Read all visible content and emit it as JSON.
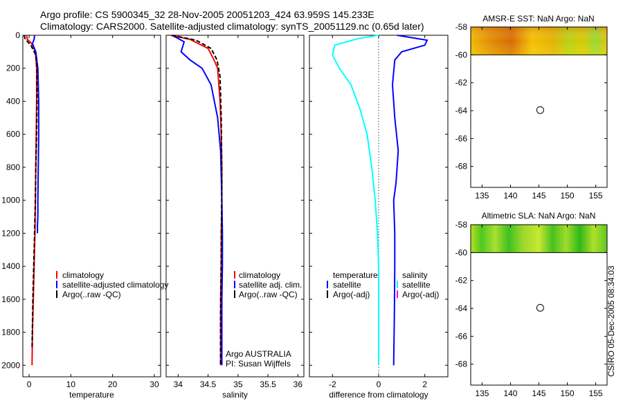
{
  "header": {
    "line1": "Argo profile: CS 5900345_32 28-Nov-2005 20051203_424 63.959S 145.233E",
    "line2": "Climatology: CARS2000. Satellite-adjusted climatology: synTS_20051129.nc (0.65d later)"
  },
  "colors": {
    "climatology": "#ff0000",
    "satellite": "#0000ff",
    "argo": "#000000",
    "temp_diff": "#00ffff",
    "argo_sal_marker": "#ff00ff"
  },
  "chart_data": [
    {
      "id": "temperature",
      "type": "line",
      "xlabel": "temperature",
      "ylabel": "",
      "xlim": [
        -1.5,
        31.5
      ],
      "ylim": [
        2070,
        0
      ],
      "xticks": [
        0,
        10,
        20,
        30
      ],
      "yticks": [
        0,
        200,
        400,
        600,
        800,
        1000,
        1200,
        1400,
        1600,
        1800,
        2000
      ],
      "legend": [
        "climatology",
        "satellite-adjusted climatology",
        "Argo(..raw -QC)"
      ],
      "series": [
        {
          "name": "climatology",
          "color": "#ff0000",
          "x": [
            -0.6,
            -0.4,
            0.6,
            1.5,
            1.8,
            1.8,
            1.7,
            1.6,
            1.5,
            1.4,
            1.2,
            1.0,
            0.8,
            0.7
          ],
          "y": [
            0,
            25,
            50,
            100,
            200,
            400,
            600,
            800,
            1000,
            1200,
            1400,
            1600,
            1800,
            2000
          ]
        },
        {
          "name": "satellite",
          "color": "#0000ff",
          "x": [
            1.3,
            1.2,
            0.8,
            1.6,
            2.1,
            2.3,
            2.3,
            2.2,
            2.1,
            2.1,
            2.0,
            2.0
          ],
          "y": [
            0,
            25,
            50,
            100,
            200,
            400,
            600,
            800,
            1000,
            1100,
            1150,
            1200
          ]
        },
        {
          "name": "Argo",
          "color": "#000000",
          "x": [
            -1.2,
            -0.9,
            0.4,
            1.6,
            1.9,
            1.9,
            1.8,
            1.6,
            1.5,
            1.3,
            1.1,
            0.9,
            0.7
          ],
          "y": [
            0,
            25,
            60,
            120,
            200,
            400,
            600,
            800,
            1000,
            1200,
            1400,
            1600,
            1900
          ]
        }
      ]
    },
    {
      "id": "salinity",
      "type": "line",
      "xlabel": "salinity",
      "ylabel": "",
      "xlim": [
        33.8,
        36.1
      ],
      "ylim": [
        2070,
        0
      ],
      "xticks": [
        34,
        34.5,
        35,
        35.5,
        36
      ],
      "legend": [
        "climatology",
        "satellite adj. clim.",
        "Argo(..raw -QC)"
      ],
      "annotations": [
        "Argo AUSTRALIA",
        "PI: Susan Wijffels"
      ],
      "series": [
        {
          "name": "climatology",
          "color": "#ff0000",
          "x": [
            33.87,
            34.2,
            34.5,
            34.6,
            34.66,
            34.7,
            34.72,
            34.73,
            34.73,
            34.72,
            34.72,
            34.71,
            34.71
          ],
          "y": [
            0,
            25,
            80,
            150,
            200,
            400,
            600,
            800,
            1000,
            1200,
            1400,
            1600,
            2000
          ]
        },
        {
          "name": "satellite",
          "color": "#0000ff",
          "x": [
            33.9,
            34.1,
            34.05,
            34.2,
            34.4,
            34.55,
            34.66,
            34.71,
            34.73,
            34.74,
            34.74,
            34.73,
            34.73
          ],
          "y": [
            0,
            40,
            100,
            150,
            200,
            300,
            500,
            700,
            1000,
            1200,
            1400,
            1600,
            2000
          ]
        },
        {
          "name": "Argo",
          "color": "#000000",
          "x": [
            33.9,
            34.3,
            34.55,
            34.65,
            34.7,
            34.72,
            34.73,
            34.72,
            34.71,
            34.71
          ],
          "y": [
            0,
            30,
            80,
            150,
            250,
            500,
            900,
            1300,
            1700,
            2000
          ]
        }
      ]
    },
    {
      "id": "difference",
      "type": "line",
      "xlabel": "difference from climatology",
      "ylabel": "",
      "xlim": [
        -3,
        3
      ],
      "ylim": [
        2070,
        0
      ],
      "xticks": [
        -2,
        0,
        2
      ],
      "legend_left": [
        "temperature",
        "satellite",
        "Argo(-adj)"
      ],
      "legend_right": [
        "salinity",
        "satellite",
        "Argo(-adj)"
      ],
      "series": [
        {
          "name": "temperature satellite",
          "color": "#00ffff",
          "x": [
            0.0,
            -0.9,
            -1.9,
            -2.0,
            -1.7,
            -1.2,
            -0.8,
            -0.5,
            -0.3,
            -0.15,
            -0.05,
            0.0,
            0.0,
            0.0
          ],
          "y": [
            0,
            20,
            60,
            120,
            200,
            300,
            450,
            600,
            800,
            1000,
            1200,
            1400,
            1700,
            2000
          ]
        },
        {
          "name": "salinity satellite",
          "color": "#0000ff",
          "x": [
            0.8,
            2.1,
            2.0,
            1.0,
            0.7,
            0.6,
            0.7,
            0.85,
            0.75,
            0.65,
            0.7,
            0.7,
            0.68,
            0.65
          ],
          "y": [
            0,
            30,
            60,
            100,
            150,
            300,
            500,
            700,
            900,
            1000,
            1200,
            1400,
            1700,
            2000
          ]
        }
      ]
    },
    {
      "id": "sst_map",
      "type": "heatmap",
      "title": "AMSR-E SST: NaN Argo: NaN",
      "xlim": [
        133,
        157
      ],
      "ylim": [
        -69.5,
        -58
      ],
      "xticks": [
        135,
        140,
        145,
        150,
        155
      ],
      "yticks": [
        -58,
        -60,
        -62,
        -64,
        -66,
        -68
      ],
      "data_lat_range": [
        -60,
        -58
      ],
      "argo_position": {
        "lon": 145.233,
        "lat": -63.959
      }
    },
    {
      "id": "sla_map",
      "type": "heatmap",
      "title": "Altimetric SLA: NaN Argo: NaN",
      "xlim": [
        133,
        157
      ],
      "ylim": [
        -69.5,
        -58
      ],
      "xticks": [
        135,
        140,
        145,
        150,
        155
      ],
      "yticks": [
        -58,
        -60,
        -62,
        -64,
        -66,
        -68
      ],
      "data_lat_range": [
        -60,
        -58
      ],
      "argo_position": {
        "lon": 145.233,
        "lat": -63.959
      }
    }
  ],
  "footer": {
    "stamp": "CSIRO 05-Dec-2005 08:34:03"
  }
}
